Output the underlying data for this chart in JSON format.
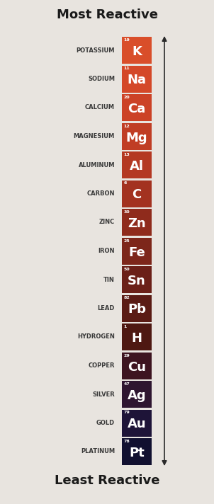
{
  "title_top": "Most Reactive",
  "title_bottom": "Least Reactive",
  "background_color": "#e8e4df",
  "elements": [
    {
      "name": "POTASSIUM",
      "symbol": "K",
      "number": "19",
      "color": "#d94e2a"
    },
    {
      "name": "SODIUM",
      "symbol": "Na",
      "number": "11",
      "color": "#d44828"
    },
    {
      "name": "CALCIUM",
      "symbol": "Ca",
      "number": "20",
      "color": "#cc4226"
    },
    {
      "name": "MAGNESIUM",
      "symbol": "Mg",
      "number": "12",
      "color": "#c03d24"
    },
    {
      "name": "ALUMINUM",
      "symbol": "Al",
      "number": "13",
      "color": "#b43822"
    },
    {
      "name": "CARBON",
      "symbol": "C",
      "number": "6",
      "color": "#a33220"
    },
    {
      "name": "ZINC",
      "symbol": "Zn",
      "number": "30",
      "color": "#8f2b1c"
    },
    {
      "name": "IRON",
      "symbol": "Fe",
      "number": "25",
      "color": "#7d261a"
    },
    {
      "name": "TIN",
      "symbol": "Sn",
      "number": "50",
      "color": "#6b2018"
    },
    {
      "name": "LEAD",
      "symbol": "Pb",
      "number": "82",
      "color": "#5a1b14"
    },
    {
      "name": "HYDROGEN",
      "symbol": "H",
      "number": "1",
      "color": "#4e1812"
    },
    {
      "name": "COPPER",
      "symbol": "Cu",
      "number": "29",
      "color": "#3d1420"
    },
    {
      "name": "SILVER",
      "symbol": "Ag",
      "number": "47",
      "color": "#2e1530"
    },
    {
      "name": "GOLD",
      "symbol": "Au",
      "number": "79",
      "color": "#1e1438"
    },
    {
      "name": "PLATINUM",
      "symbol": "Pt",
      "number": "78",
      "color": "#111030"
    }
  ],
  "label_color": "#3a3a3a",
  "arrow_color": "#2a2a2a",
  "title_color": "#1a1a1a",
  "fig_width": 3.02,
  "fig_height": 7.12,
  "dpi": 100
}
